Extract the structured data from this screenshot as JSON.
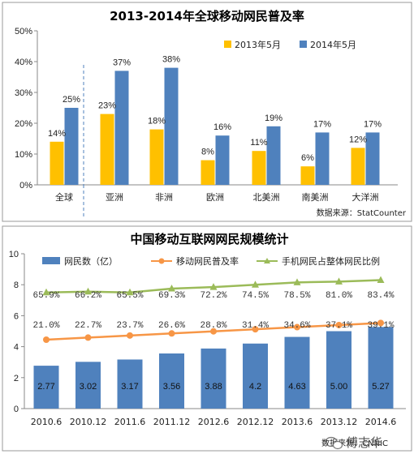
{
  "chart_data": [
    {
      "type": "bar",
      "title": "2013-2014年全球移动网民普及率",
      "categories": [
        "全球",
        "亚洲",
        "非洲",
        "欧洲",
        "北美洲",
        "南美洲",
        "大洋洲"
      ],
      "series": [
        {
          "name": "2013年5月",
          "values": [
            14,
            23,
            18,
            8,
            11,
            6,
            12
          ],
          "labels": [
            "14%",
            "23%",
            "18%",
            "8%",
            "11%",
            "6%",
            "12%"
          ]
        },
        {
          "name": "2014年5月",
          "values": [
            25,
            37,
            38,
            16,
            19,
            17,
            17
          ],
          "labels": [
            "25%",
            "37%",
            "38%",
            "16%",
            "19%",
            "17%",
            "17%"
          ]
        }
      ],
      "ylim": [
        0,
        50
      ],
      "yticks": [
        0,
        10,
        20,
        30,
        40,
        50
      ],
      "ytick_labels": [
        "0%",
        "10%",
        "20%",
        "30%",
        "40%",
        "50%"
      ],
      "legend": "top-right",
      "grid": false,
      "source": "数据来源：StatCounter"
    },
    {
      "type": "bar",
      "title": "中国移动互联网网民规模统计",
      "categories": [
        "2010.6",
        "2010.12",
        "2011.6",
        "2011.12",
        "2012.6",
        "2012.12",
        "2013.6",
        "2013.12",
        "2014.6"
      ],
      "bar_series": {
        "name": "网民数（亿）",
        "values": [
          2.77,
          3.02,
          3.17,
          3.56,
          3.88,
          4.2,
          4.63,
          5.0,
          5.27
        ],
        "labels": [
          "2.77",
          "3.02",
          "3.17",
          "3.56",
          "3.88",
          "4.2",
          "4.63",
          "5.00",
          "5.27"
        ]
      },
      "line_series": [
        {
          "name": "移动网民普及率",
          "values": [
            21.0,
            22.7,
            23.7,
            26.6,
            28.8,
            31.4,
            34.6,
            37.1,
            39.1
          ],
          "labels": [
            "21.0%",
            "22.7%",
            "23.7%",
            "26.6%",
            "28.8%",
            "31.4%",
            "34.6%",
            "37.1%",
            "39.1%"
          ]
        },
        {
          "name": "手机网民占整体网民比例",
          "values": [
            65.9,
            66.2,
            65.5,
            69.3,
            72.2,
            74.5,
            78.5,
            81.0,
            83.4
          ],
          "labels": [
            "65.9%",
            "66.2%",
            "65.5%",
            "69.3%",
            "72.2%",
            "74.5%",
            "78.5%",
            "81.0%",
            "83.4%"
          ]
        }
      ],
      "ylim": [
        0,
        10
      ],
      "yticks": [
        0,
        2,
        4,
        6,
        8,
        10
      ],
      "ytick_labels": [
        "0",
        "2",
        "4",
        "6",
        "8",
        "10"
      ],
      "legend": "top",
      "grid": false,
      "source": "数据来源：CNNIC"
    }
  ],
  "colors": {
    "series_2013": "#ffc000",
    "series_2014": "#4f81bd",
    "bar2": "#4f81bd",
    "line_orange": "#f79646",
    "line_green": "#9bbb59",
    "frame": "#9a9a9a"
  },
  "watermark": "傅志华",
  "watermark_icon": "wechat-icon"
}
